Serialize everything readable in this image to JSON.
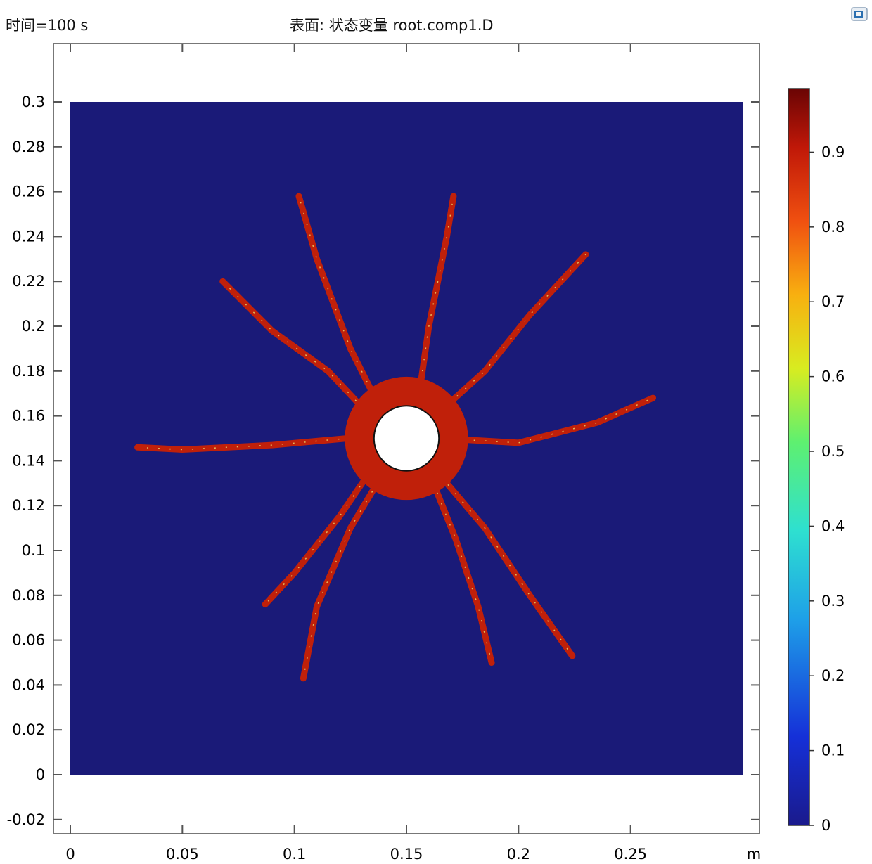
{
  "header": {
    "time_label": "时间=100 s",
    "title": "表面: 状态变量 root.comp1.D"
  },
  "colors": {
    "background_field": "#1a1a78",
    "crack": "#c0200a",
    "hole": "#ffffff",
    "frame": "#777777"
  },
  "icons": {
    "app": "window-icon"
  },
  "chart_data": {
    "type": "heatmap",
    "title": "表面: 状态变量 root.comp1.D",
    "subtitle": "时间=100 s",
    "x_unit": "m",
    "xlim": [
      -0.001,
      0.3
    ],
    "ylim": [
      -0.024,
      0.325
    ],
    "x_ticks": [
      0,
      0.05,
      0.1,
      0.15,
      0.2,
      0.25
    ],
    "x_tick_labels": [
      "0",
      "0.05",
      "0.1",
      "0.15",
      "0.2",
      "0.25"
    ],
    "y_ticks": [
      -0.02,
      0,
      0.02,
      0.04,
      0.06,
      0.08,
      0.1,
      0.12,
      0.14,
      0.16,
      0.18,
      0.2,
      0.22,
      0.24,
      0.26,
      0.28,
      0.3
    ],
    "y_tick_labels": [
      "-0.02",
      "0",
      "0.02",
      "0.04",
      "0.06",
      "0.08",
      "0.1",
      "0.12",
      "0.14",
      "0.16",
      "0.18",
      "0.2",
      "0.22",
      "0.24",
      "0.26",
      "0.28",
      "0.3"
    ],
    "domain": {
      "x": [
        0,
        0.3
      ],
      "y": [
        0,
        0.3
      ]
    },
    "hole": {
      "cx": 0.15,
      "cy": 0.15,
      "r": 0.0145
    },
    "background_value": 0,
    "crack_value": 0.95,
    "cracks": [
      [
        [
          0.135,
          0.151
        ],
        [
          0.09,
          0.147
        ],
        [
          0.05,
          0.145
        ],
        [
          0.03,
          0.146
        ]
      ],
      [
        [
          0.137,
          0.166
        ],
        [
          0.125,
          0.19
        ],
        [
          0.11,
          0.23
        ],
        [
          0.102,
          0.258
        ]
      ],
      [
        [
          0.131,
          0.163
        ],
        [
          0.115,
          0.18
        ],
        [
          0.09,
          0.198
        ],
        [
          0.068,
          0.22
        ]
      ],
      [
        [
          0.155,
          0.165
        ],
        [
          0.16,
          0.2
        ],
        [
          0.168,
          0.24
        ],
        [
          0.171,
          0.258
        ]
      ],
      [
        [
          0.165,
          0.162
        ],
        [
          0.185,
          0.18
        ],
        [
          0.205,
          0.205
        ],
        [
          0.23,
          0.232
        ]
      ],
      [
        [
          0.165,
          0.15
        ],
        [
          0.2,
          0.148
        ],
        [
          0.235,
          0.157
        ],
        [
          0.26,
          0.168
        ]
      ],
      [
        [
          0.14,
          0.135
        ],
        [
          0.125,
          0.11
        ],
        [
          0.11,
          0.075
        ],
        [
          0.104,
          0.043
        ]
      ],
      [
        [
          0.135,
          0.137
        ],
        [
          0.12,
          0.115
        ],
        [
          0.1,
          0.09
        ],
        [
          0.087,
          0.076
        ]
      ],
      [
        [
          0.16,
          0.135
        ],
        [
          0.172,
          0.105
        ],
        [
          0.182,
          0.075
        ],
        [
          0.188,
          0.05
        ]
      ],
      [
        [
          0.162,
          0.137
        ],
        [
          0.185,
          0.11
        ],
        [
          0.205,
          0.08
        ],
        [
          0.224,
          0.053
        ]
      ]
    ],
    "colorbar": {
      "range": [
        0,
        0.985
      ],
      "ticks": [
        0,
        0.1,
        0.2,
        0.3,
        0.4,
        0.5,
        0.6,
        0.7,
        0.8,
        0.9
      ],
      "tick_labels": [
        "0",
        "0.1",
        "0.2",
        "0.3",
        "0.4",
        "0.5",
        "0.6",
        "0.7",
        "0.8",
        "0.9"
      ],
      "colormap": "rainbow"
    }
  }
}
